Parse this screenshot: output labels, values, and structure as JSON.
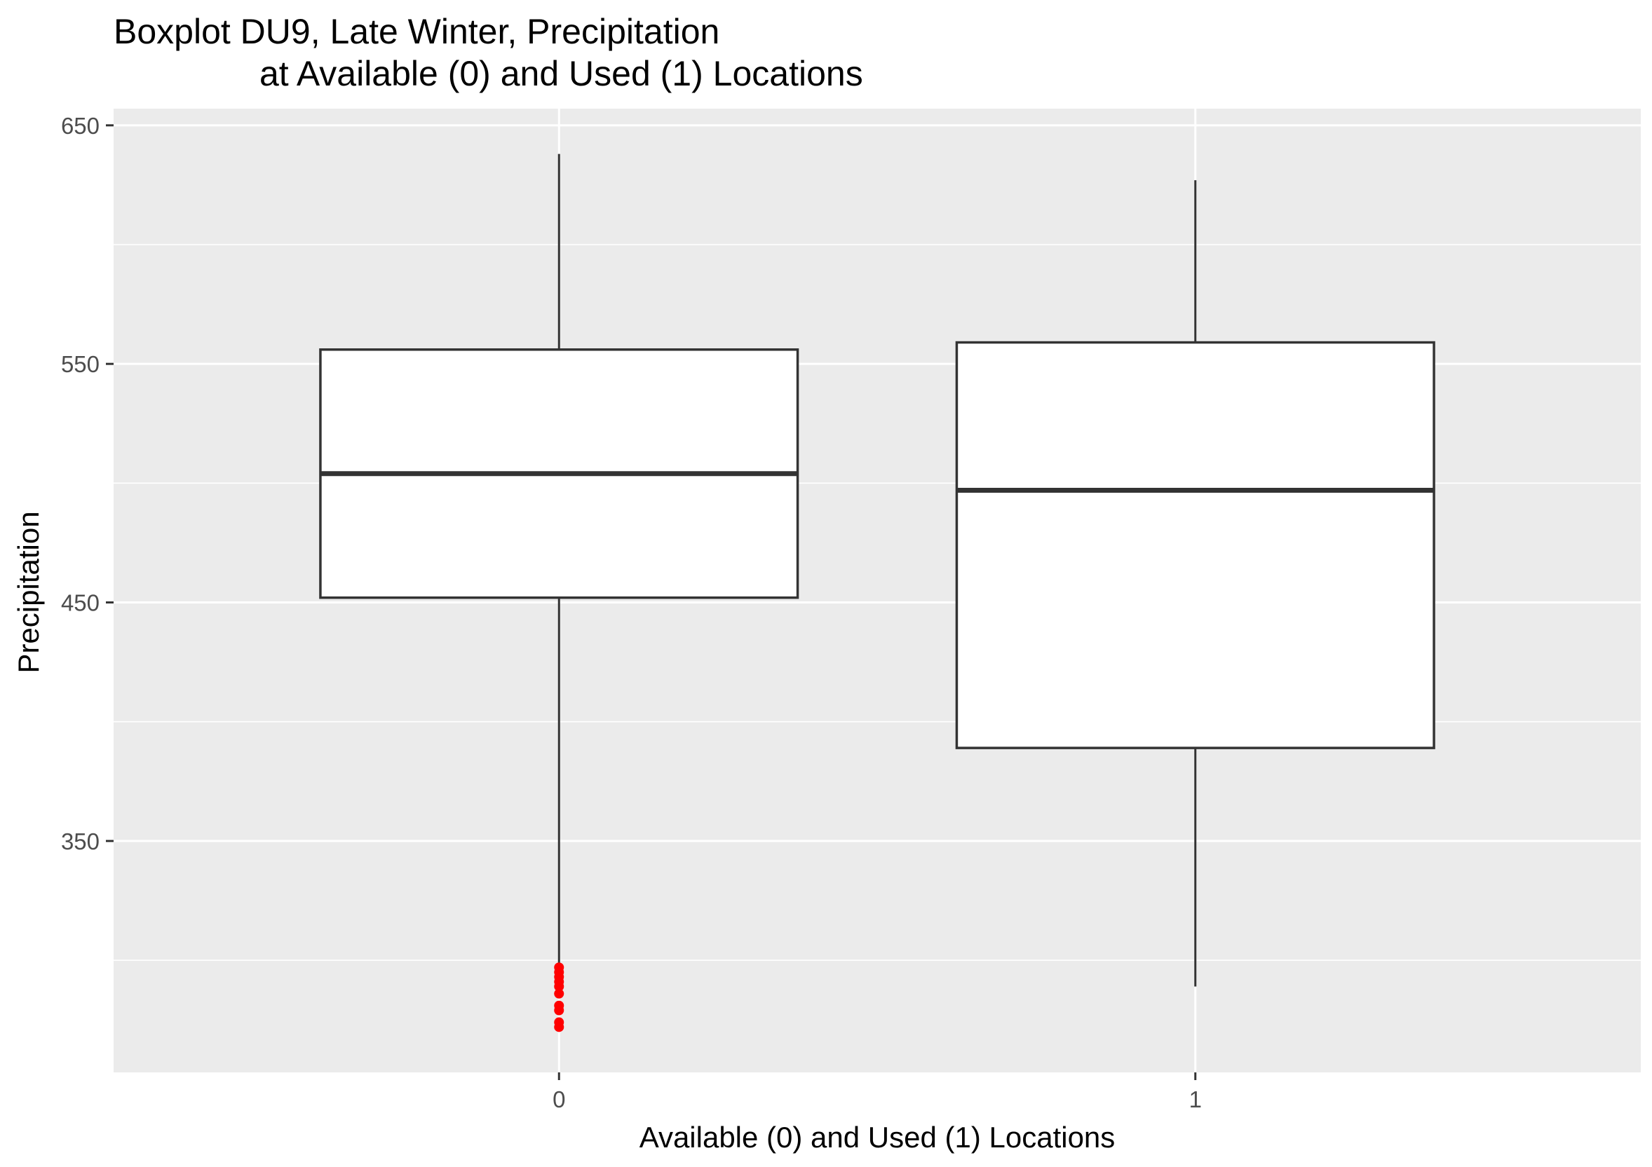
{
  "chart_data": {
    "type": "boxplot",
    "title": "Boxplot DU9, Late Winter, Precipitation",
    "subtitle": "at Available (0) and Used (1) Locations",
    "xlabel": "Available (0) and Used (1) Locations",
    "ylabel": "Precipitation",
    "categories": [
      "0",
      "1"
    ],
    "ylim": [
      253,
      657
    ],
    "yticks": [
      350,
      450,
      550,
      650
    ],
    "y_minor": [
      300,
      400,
      500,
      600
    ],
    "grid": true,
    "series": [
      {
        "name": "0",
        "whisker_low": 299,
        "q1": 452,
        "median": 504,
        "q3": 556,
        "whisker_high": 638,
        "outliers": [
          297,
          295,
          293,
          291,
          289,
          286,
          281,
          279,
          274,
          272
        ]
      },
      {
        "name": "1",
        "whisker_low": 289,
        "q1": 389,
        "median": 497,
        "q3": 559,
        "whisker_high": 627,
        "outliers": []
      }
    ],
    "colors": {
      "panel": "#ebebeb",
      "grid": "#ffffff",
      "box_fill": "#ffffff",
      "box_line": "#333333",
      "outlier": "#ff0000",
      "tick": "#333333"
    }
  }
}
